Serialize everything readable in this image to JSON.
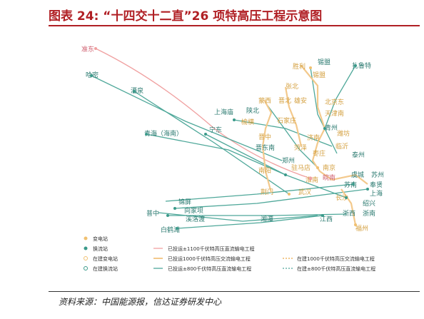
{
  "title": "图表 24: “十四交十二直”26 项特高压工程示意图",
  "source": "资料来源：中国能源报，信达证券研发中心",
  "colors": {
    "title": "#b01f24",
    "dc_built": "#f0a0a0",
    "ac_built": "#f3c98c",
    "dc_800_built": "#4fa89a",
    "ac_building": "#f3c98c",
    "dc_800_building": "#4fa89a",
    "substation": "#f0c070",
    "converter": "#3a9a8a",
    "city_text": "#2b7a70",
    "city_text_orange": "#d4a040",
    "city_text_red": "#d06070"
  },
  "map": {
    "cities": [
      {
        "name": "准东",
        "color": "red"
      },
      {
        "name": "哈密",
        "color": "teal"
      },
      {
        "name": "酒泉",
        "color": "teal"
      },
      {
        "name": "青海（海南）",
        "color": "teal"
      },
      {
        "name": "宁东",
        "color": "teal"
      },
      {
        "name": "锡盟",
        "color": "teal"
      },
      {
        "name": "扎鲁特",
        "color": "teal"
      },
      {
        "name": "胜利",
        "color": "orange"
      },
      {
        "name": "锡盟",
        "color": "orange"
      },
      {
        "name": "张北",
        "color": "orange"
      },
      {
        "name": "北京东",
        "color": "orange"
      },
      {
        "name": "天津南",
        "color": "orange"
      },
      {
        "name": "上海庙",
        "color": "teal"
      },
      {
        "name": "陕北",
        "color": "teal"
      },
      {
        "name": "蒙西",
        "color": "orange"
      },
      {
        "name": "晋北",
        "color": "orange"
      },
      {
        "name": "雄安",
        "color": "orange"
      },
      {
        "name": "榆横",
        "color": "orange"
      },
      {
        "name": "石家庄",
        "color": "orange"
      },
      {
        "name": "青州",
        "color": "teal"
      },
      {
        "name": "潍坊",
        "color": "orange"
      },
      {
        "name": "济南",
        "color": "orange"
      },
      {
        "name": "临沂",
        "color": "orange"
      },
      {
        "name": "晋中",
        "color": "orange"
      },
      {
        "name": "晋东南",
        "color": "teal"
      },
      {
        "name": "菏泽",
        "color": "orange"
      },
      {
        "name": "枣庄",
        "color": "orange"
      },
      {
        "name": "泰州",
        "color": "teal"
      },
      {
        "name": "郑州",
        "color": "teal"
      },
      {
        "name": "驻马店",
        "color": "orange"
      },
      {
        "name": "南阳",
        "color": "orange"
      },
      {
        "name": "南京",
        "color": "orange"
      },
      {
        "name": "淮南",
        "color": "orange"
      },
      {
        "name": "皖南",
        "color": "red"
      },
      {
        "name": "虞城",
        "color": "teal"
      },
      {
        "name": "苏州",
        "color": "teal"
      },
      {
        "name": "苏南",
        "color": "teal"
      },
      {
        "name": "奉贤",
        "color": "teal"
      },
      {
        "name": "荆门",
        "color": "orange"
      },
      {
        "name": "武汉",
        "color": "orange"
      },
      {
        "name": "上海",
        "color": "teal"
      },
      {
        "name": "绍兴",
        "color": "teal"
      },
      {
        "name": "长沙",
        "color": "orange"
      },
      {
        "name": "锦屏",
        "color": "teal"
      },
      {
        "name": "向家坝",
        "color": "teal"
      },
      {
        "name": "溪洛渡",
        "color": "teal"
      },
      {
        "name": "湘潭",
        "color": "teal"
      },
      {
        "name": "浙西",
        "color": "teal"
      },
      {
        "name": "浙南",
        "color": "teal"
      },
      {
        "name": "江西",
        "color": "teal"
      },
      {
        "name": "普中",
        "color": "teal"
      },
      {
        "name": "白鹤滩",
        "color": "teal"
      },
      {
        "name": "福州",
        "color": "orange"
      }
    ]
  },
  "legend": {
    "items": [
      {
        "label": "变电站",
        "kind": "dot-orange"
      },
      {
        "label": "换流站",
        "kind": "dot-teal"
      },
      {
        "label": "在建变电站",
        "kind": "ring-orange"
      },
      {
        "label": "在建换流站",
        "kind": "ring-teal"
      },
      {
        "label": "已投运±1100千伏特高压直流输电工程",
        "kind": "line-pink"
      },
      {
        "label": "已投运1000千伏特高压交流输电工程",
        "kind": "line-orange"
      },
      {
        "label": "已投运±800千伏特高压直流输电工程",
        "kind": "line-teal"
      },
      {
        "label": "在建1000千伏特高压交流输电工程",
        "kind": "dash-orange"
      },
      {
        "label": "在建±800千伏特高压直流输电工程",
        "kind": "dash-teal"
      }
    ]
  }
}
